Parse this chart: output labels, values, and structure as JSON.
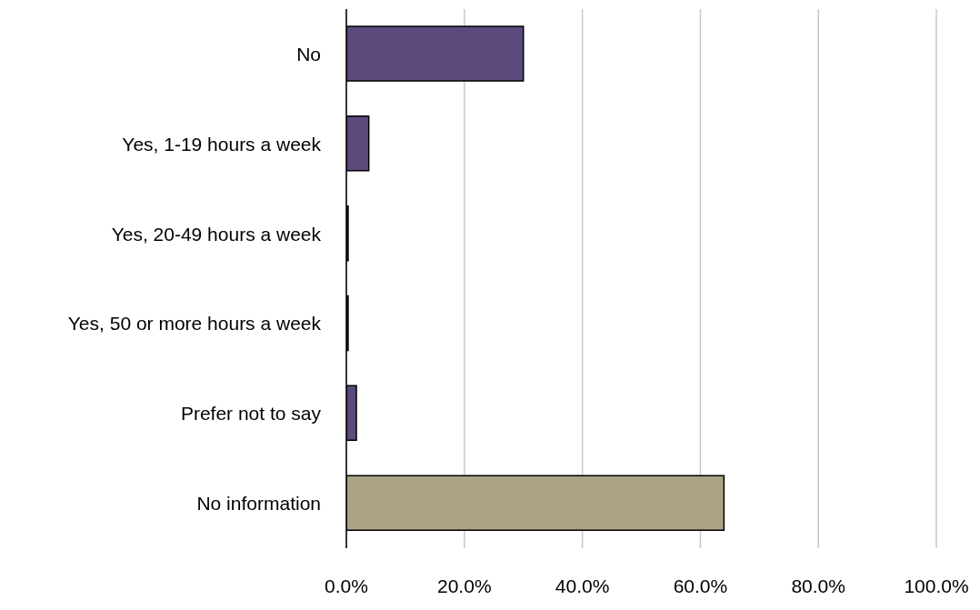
{
  "chart_data": {
    "type": "bar",
    "orientation": "horizontal",
    "categories": [
      "No",
      "Yes, 1-19 hours a week",
      "Yes, 20-49 hours a week",
      "Yes, 50 or more hours a week",
      "Prefer not to say",
      "No information"
    ],
    "values": [
      30.0,
      3.8,
      0.3,
      0.3,
      1.7,
      64.0
    ],
    "colors": [
      "#5b4a7b",
      "#5b4a7b",
      "#5b4a7b",
      "#5b4a7b",
      "#5b4a7b",
      "#aba385"
    ],
    "xlim": [
      0,
      100
    ],
    "xticks": [
      {
        "value": 0,
        "label": "0.0%"
      },
      {
        "value": 20,
        "label": "20.0%"
      },
      {
        "value": 40,
        "label": "40.0%"
      },
      {
        "value": 60,
        "label": "60.0%"
      },
      {
        "value": 80,
        "label": "80.0%"
      },
      {
        "value": 100,
        "label": "100.0%"
      }
    ],
    "grid": "x",
    "legend": false
  }
}
